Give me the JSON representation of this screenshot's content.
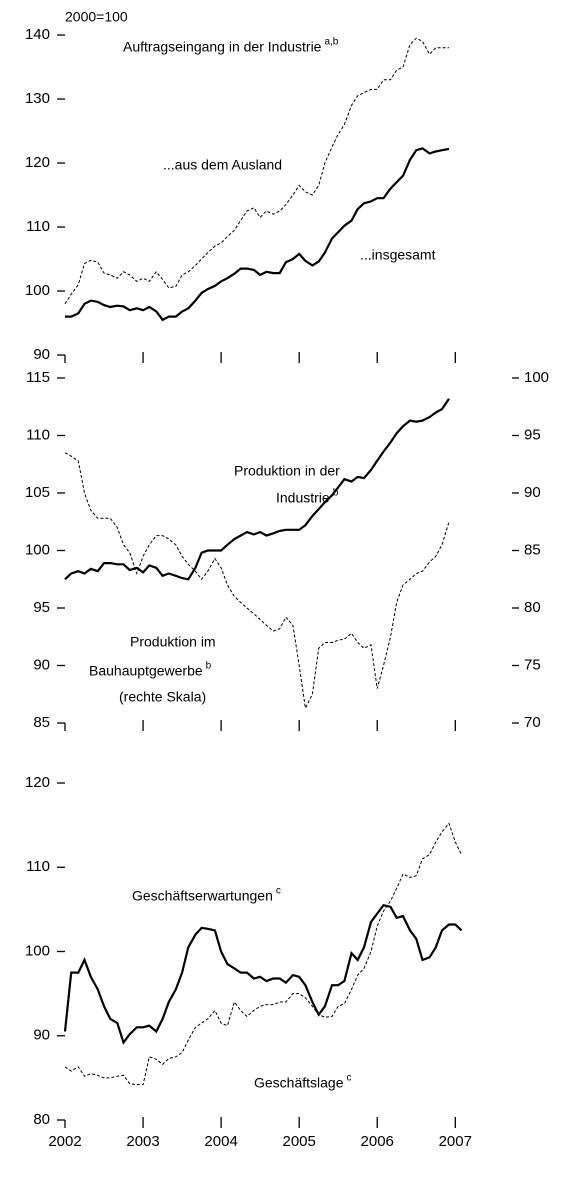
{
  "chart_data": [
    {
      "type": "line",
      "annotations": [
        {
          "text": "2000=100"
        },
        {
          "text": "Auftragseingang in der Industrie",
          "sup": "a,b"
        },
        {
          "text": "...aus dem Ausland"
        },
        {
          "text": "...insgesamt"
        }
      ],
      "x": [
        2002,
        2002.08,
        2002.17,
        2002.25,
        2002.33,
        2002.42,
        2002.5,
        2002.58,
        2002.67,
        2002.75,
        2002.83,
        2002.92,
        2003,
        2003.08,
        2003.17,
        2003.25,
        2003.33,
        2003.42,
        2003.5,
        2003.58,
        2003.67,
        2003.75,
        2003.83,
        2003.92,
        2004,
        2004.08,
        2004.17,
        2004.25,
        2004.33,
        2004.42,
        2004.5,
        2004.58,
        2004.67,
        2004.75,
        2004.83,
        2004.92,
        2005,
        2005.08,
        2005.17,
        2005.25,
        2005.33,
        2005.42,
        2005.5,
        2005.58,
        2005.67,
        2005.75,
        2005.83,
        2005.92,
        2006,
        2006.08,
        2006.17,
        2006.25,
        2006.33,
        2006.42,
        2006.5,
        2006.58,
        2006.67,
        2006.75,
        2006.83,
        2006.92
      ],
      "series": [
        {
          "color": "#000000",
          "dash": false,
          "values": [
            96,
            96,
            96.5,
            98,
            98.5,
            98.3,
            97.8,
            97.5,
            97.7,
            97.6,
            97,
            97.3,
            97,
            97.5,
            96.8,
            95.5,
            96,
            96,
            96.8,
            97.3,
            98.5,
            99.7,
            100.3,
            100.8,
            101.5,
            102,
            102.7,
            103.5,
            103.5,
            103.3,
            102.5,
            103,
            102.8,
            102.8,
            104.5,
            105,
            105.8,
            104.7,
            104,
            104.6,
            106,
            108.2,
            109.2,
            110.2,
            111,
            112.8,
            113.7,
            114,
            114.5,
            114.5,
            116,
            117,
            118,
            120.5,
            122,
            122.3,
            121.5,
            121.8,
            122,
            122.2
          ]
        },
        {
          "color": "#000000",
          "dash": true,
          "values": [
            98,
            99.5,
            101,
            104.3,
            104.8,
            104.5,
            102.8,
            102.5,
            102,
            103,
            102.5,
            101.5,
            102,
            101.5,
            103,
            101.8,
            100.5,
            100.7,
            102.5,
            103,
            104,
            105,
            106,
            107,
            107.5,
            108.5,
            109.5,
            111,
            112.5,
            113,
            111.5,
            112.5,
            112,
            112.5,
            113.5,
            115,
            116.5,
            115.5,
            115,
            116.5,
            120,
            122.5,
            124.5,
            126,
            129,
            130.5,
            131,
            131.5,
            131.5,
            133,
            133,
            134.5,
            135,
            138.5,
            139.5,
            139,
            137,
            138,
            138,
            138
          ]
        }
      ],
      "xlim": [
        2002,
        2007.15
      ],
      "xticks": [
        2002,
        2003,
        2004,
        2005,
        2006,
        2007
      ],
      "xtick_labels": false,
      "ylim": [
        90,
        140
      ],
      "yticks": [
        90,
        100,
        110,
        120,
        130,
        140
      ]
    },
    {
      "type": "line",
      "annotations": [
        {
          "text": "Produktion in der"
        },
        {
          "text": "Industrie",
          "sup": "b"
        },
        {
          "text": "Produktion im"
        },
        {
          "text": "Bauhauptgewerbe",
          "sup": "b"
        },
        {
          "text": "(rechte Skala)"
        }
      ],
      "x": [
        2002,
        2002.08,
        2002.17,
        2002.25,
        2002.33,
        2002.42,
        2002.5,
        2002.58,
        2002.67,
        2002.75,
        2002.83,
        2002.92,
        2003,
        2003.08,
        2003.17,
        2003.25,
        2003.33,
        2003.42,
        2003.5,
        2003.58,
        2003.67,
        2003.75,
        2003.83,
        2003.92,
        2004,
        2004.08,
        2004.17,
        2004.25,
        2004.33,
        2004.42,
        2004.5,
        2004.58,
        2004.67,
        2004.75,
        2004.83,
        2004.92,
        2005,
        2005.08,
        2005.17,
        2005.25,
        2005.33,
        2005.42,
        2005.5,
        2005.58,
        2005.67,
        2005.75,
        2005.83,
        2005.92,
        2006,
        2006.08,
        2006.17,
        2006.25,
        2006.33,
        2006.42,
        2006.5,
        2006.58,
        2006.67,
        2006.75,
        2006.83,
        2006.92
      ],
      "series": [
        {
          "color": "#000000",
          "dash": false,
          "values": [
            97.5,
            98,
            98.2,
            98,
            98.4,
            98.2,
            98.9,
            98.9,
            98.8,
            98.8,
            98.3,
            98.5,
            98.1,
            98.7,
            98.5,
            97.8,
            98,
            97.8,
            97.6,
            97.5,
            98.5,
            99.8,
            100,
            100,
            100,
            100.5,
            101,
            101.3,
            101.6,
            101.4,
            101.6,
            101.3,
            101.5,
            101.7,
            101.8,
            101.8,
            101.8,
            102.2,
            103,
            103.6,
            104.2,
            104.8,
            105.5,
            106.2,
            106,
            106.4,
            106.3,
            107,
            107.8,
            108.6,
            109.4,
            110.2,
            110.8,
            111.3,
            111.2,
            111.3,
            111.6,
            112,
            112.3,
            113.2
          ]
        },
        {
          "color": "#000000",
          "dash": true,
          "axis": "y2",
          "values": [
            93.5,
            93.2,
            92.8,
            90,
            88.5,
            87.8,
            87.8,
            87.8,
            87,
            85.5,
            84.8,
            83,
            84.5,
            85.5,
            86.3,
            86.3,
            86,
            85.5,
            84.5,
            83.8,
            83.2,
            82.5,
            83.2,
            84.3,
            83.5,
            82,
            81,
            80.5,
            80,
            79.5,
            79,
            78.5,
            78,
            78.2,
            79.2,
            78.5,
            75,
            71.3,
            72.5,
            76.5,
            77,
            77,
            77.2,
            77.3,
            77.8,
            77,
            76.5,
            76.8,
            73,
            75,
            77.5,
            80.5,
            82,
            82.5,
            83,
            83.2,
            84,
            84.5,
            85.5,
            87.5
          ]
        }
      ],
      "xlim": [
        2002,
        2007.15
      ],
      "xticks": [
        2002,
        2003,
        2004,
        2005,
        2006,
        2007
      ],
      "xtick_labels": false,
      "ylim": [
        85,
        115
      ],
      "yticks": [
        85,
        90,
        95,
        100,
        105,
        110,
        115
      ],
      "y2lim": [
        70,
        100
      ],
      "y2ticks": [
        70,
        75,
        80,
        85,
        90,
        95,
        100
      ]
    },
    {
      "type": "line",
      "annotations": [
        {
          "text": "Geschäftserwartungen",
          "sup": "c"
        },
        {
          "text": "Geschäftslage",
          "sup": "c"
        }
      ],
      "x": [
        2002,
        2002.08,
        2002.17,
        2002.25,
        2002.33,
        2002.42,
        2002.5,
        2002.58,
        2002.67,
        2002.75,
        2002.83,
        2002.92,
        2003,
        2003.08,
        2003.17,
        2003.25,
        2003.33,
        2003.42,
        2003.5,
        2003.58,
        2003.67,
        2003.75,
        2003.83,
        2003.92,
        2004,
        2004.08,
        2004.17,
        2004.25,
        2004.33,
        2004.42,
        2004.5,
        2004.58,
        2004.67,
        2004.75,
        2004.83,
        2004.92,
        2005,
        2005.08,
        2005.17,
        2005.25,
        2005.33,
        2005.42,
        2005.5,
        2005.58,
        2005.67,
        2005.75,
        2005.83,
        2005.92,
        2006,
        2006.08,
        2006.17,
        2006.25,
        2006.33,
        2006.42,
        2006.5,
        2006.58,
        2006.67,
        2006.75,
        2006.83,
        2006.92,
        2007,
        2007.08
      ],
      "series": [
        {
          "color": "#000000",
          "dash": false,
          "values": [
            90.5,
            97.5,
            97.5,
            99,
            97,
            95.5,
            93.5,
            92,
            91.5,
            89.2,
            90.2,
            91,
            91,
            91.2,
            90.5,
            92,
            94,
            95.5,
            97.5,
            100.5,
            102,
            102.8,
            102.7,
            102.5,
            100,
            98.5,
            98,
            97.5,
            97.5,
            96.8,
            97,
            96.5,
            96.8,
            96.8,
            96.3,
            97.2,
            97,
            96,
            94,
            92.5,
            93.5,
            96,
            96,
            96.5,
            99.8,
            99,
            100.5,
            103.5,
            104.5,
            105.5,
            105.3,
            104,
            104.2,
            102.5,
            101.5,
            99,
            99.3,
            100.5,
            102.5,
            103.2,
            103.2,
            102.5
          ]
        },
        {
          "color": "#000000",
          "dash": true,
          "values": [
            86.3,
            85.8,
            86.3,
            85.2,
            85.5,
            85.3,
            85,
            85,
            85.2,
            85.3,
            84.3,
            84.2,
            84.2,
            87.5,
            87.2,
            86.6,
            87.3,
            87.5,
            88,
            89.5,
            91,
            91.5,
            92,
            93,
            91.5,
            91.2,
            94,
            93,
            92.3,
            93,
            93.5,
            93.7,
            93.7,
            94,
            94,
            95,
            95,
            94.5,
            93.5,
            92.5,
            92.2,
            92.3,
            93.5,
            93.8,
            95.5,
            97.2,
            98,
            100,
            103,
            104.8,
            106,
            107.5,
            109.2,
            108.8,
            109,
            111,
            111.5,
            113,
            114.2,
            115.2,
            113,
            111.5
          ]
        }
      ],
      "xlim": [
        2002,
        2007.15
      ],
      "xticks": [
        2002,
        2003,
        2004,
        2005,
        2006,
        2007
      ],
      "xtick_labels": true,
      "ylim": [
        80,
        120
      ],
      "yticks": [
        80,
        90,
        100,
        110,
        120
      ]
    }
  ]
}
